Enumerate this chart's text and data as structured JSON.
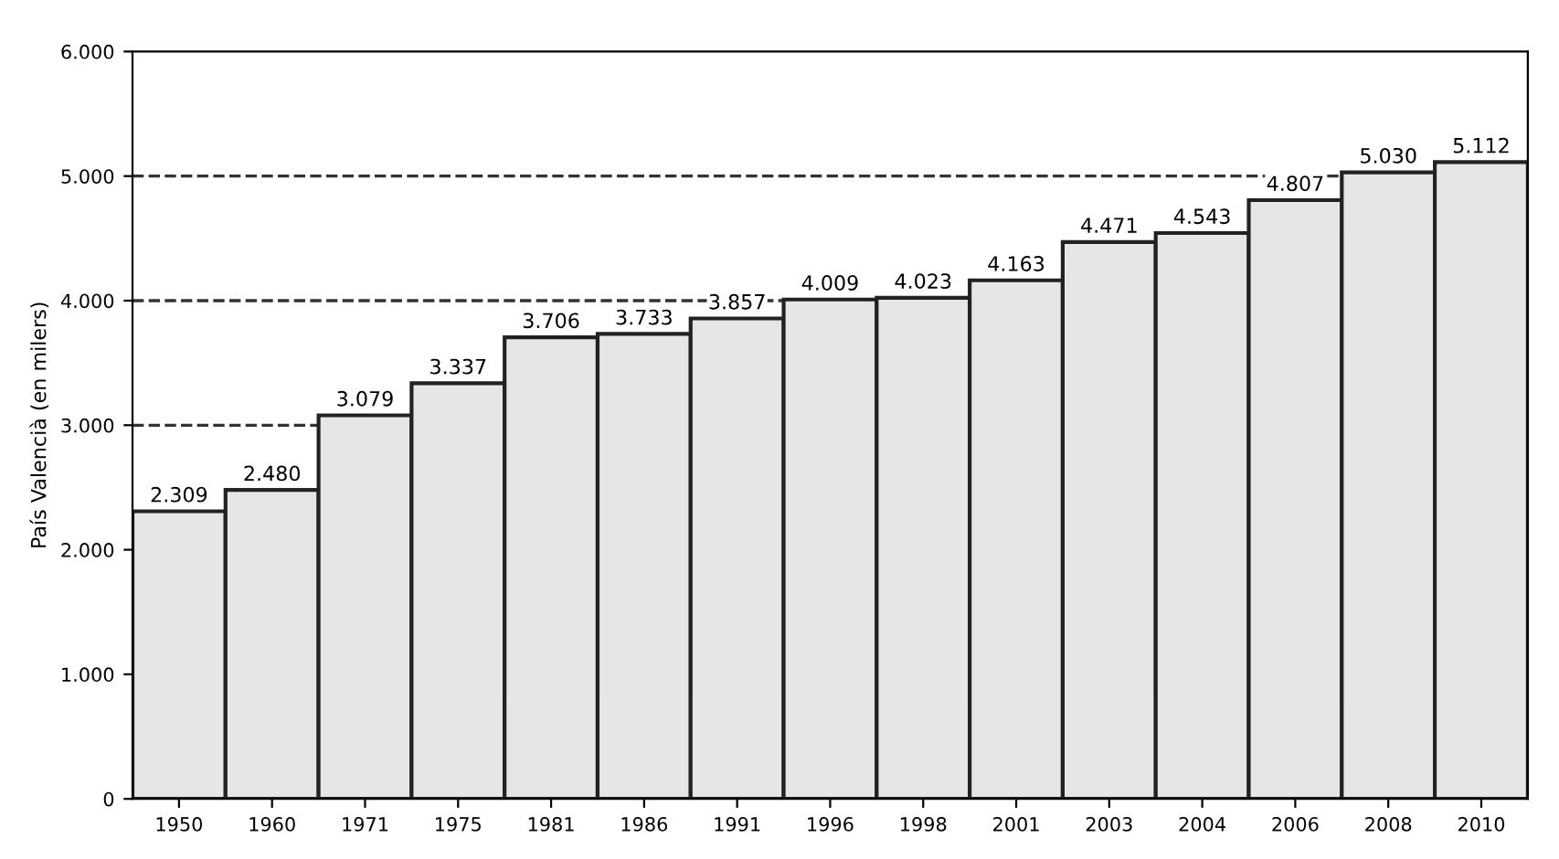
{
  "chart_data": {
    "type": "bar",
    "ylabel": "País Valencià (en milers)",
    "categories": [
      "1950",
      "1960",
      "1971",
      "1975",
      "1981",
      "1986",
      "1991",
      "1996",
      "1998",
      "2001",
      "2003",
      "2004",
      "2006",
      "2008",
      "2010"
    ],
    "values": [
      2309,
      2480,
      3079,
      3337,
      3706,
      3733,
      3857,
      4009,
      4023,
      4163,
      4471,
      4543,
      4807,
      5030,
      5112
    ],
    "value_labels": [
      "2.309",
      "2.480",
      "3.079",
      "3.337",
      "3.706",
      "3.733",
      "3.857",
      "4.009",
      "4.023",
      "4.163",
      "4.471",
      "4.543",
      "4.807",
      "5.030",
      "5.112"
    ],
    "color": "#e6e6e6",
    "ylim": [
      0,
      6000
    ],
    "yticks": [
      0,
      {
        "value": 1000,
        "label": "1.000"
      },
      {
        "value": 2000,
        "label": "2.000"
      },
      {
        "value": 3000,
        "label": "3.000"
      },
      {
        "value": 4000,
        "label": "4.000"
      },
      {
        "value": 5000,
        "label": "5.000"
      },
      {
        "value": 6000,
        "label": "6.000"
      }
    ],
    "ref_lines": [
      {
        "axis": "y",
        "value": 3000,
        "color": "#333333",
        "line_style": "dashed"
      },
      {
        "axis": "y",
        "value": 4000,
        "color": "#333333",
        "line_style": "dashed"
      },
      {
        "axis": "y",
        "value": 5000,
        "color": "#333333",
        "line_style": "dashed"
      }
    ],
    "grid": false,
    "legend": false
  }
}
